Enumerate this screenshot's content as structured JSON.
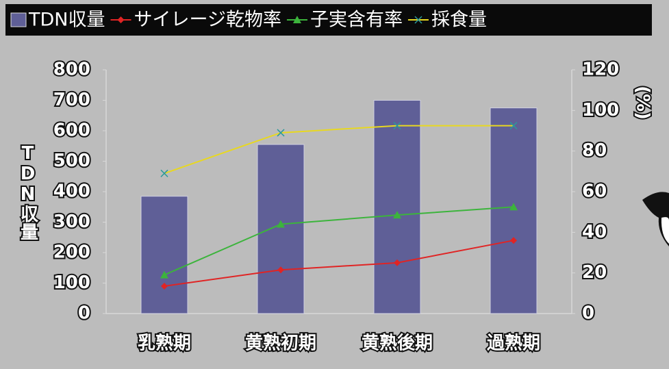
{
  "chart_data": {
    "type": "bar",
    "categories": [
      "乳熟期",
      "黄熟初期",
      "黄熟後期",
      "過熟期"
    ],
    "y_label": "TDN収量",
    "y2_label": "(%)",
    "ylim": [
      0,
      800
    ],
    "yticks": [
      0,
      100,
      200,
      300,
      400,
      500,
      600,
      700,
      800
    ],
    "y2lim": [
      0,
      120
    ],
    "y2ticks": [
      0,
      20,
      40,
      60,
      80,
      100,
      120
    ],
    "series": [
      {
        "name": "TDN収量",
        "type": "bar",
        "color": "#5f5f97",
        "values": [
          385,
          555,
          700,
          675
        ]
      },
      {
        "name": "サイレージ乾物率",
        "type": "line",
        "marker": "diamond",
        "axis": "y2",
        "color": "#e02424",
        "values": [
          13.5,
          21.5,
          25,
          36
        ]
      },
      {
        "name": "子実含有率",
        "type": "line",
        "marker": "triangle",
        "axis": "y2",
        "color": "#3cb43c",
        "values": [
          19,
          44,
          48.5,
          52.5
        ]
      },
      {
        "name": "採食量",
        "type": "line",
        "marker": "x",
        "axis": "y2",
        "color": "#e8d820",
        "values": [
          69,
          89,
          92.5,
          92.5
        ]
      }
    ]
  }
}
